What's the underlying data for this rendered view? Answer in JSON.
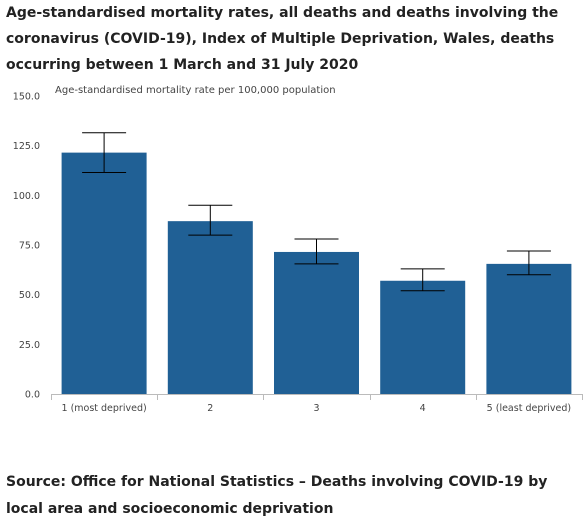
{
  "title": "Age-standardised mortality rates, all deaths and deaths involving the coronavirus (COVID-19), Index of Multiple Deprivation, Wales, deaths occurring between 1 March and 31 July 2020",
  "source": "Source: Office for National Statistics – Deaths involving COVID-19 by local area and socioeconomic deprivation",
  "colors": {
    "bar": "#206095",
    "error_bar": "#000000",
    "axis": "#bbbbbb"
  },
  "chart_data": {
    "type": "bar",
    "title": "Age-standardised mortality rates, all deaths and deaths involving the coronavirus (COVID-19), Index of Multiple Deprivation, Wales, deaths occurring between 1 March and 31 July 2020",
    "xlabel": "",
    "ylabel": "Age-standardised mortality rate per 100,000 population",
    "ylim": [
      0,
      150
    ],
    "yticks": [
      0,
      25,
      50,
      75,
      100,
      125,
      150
    ],
    "ytick_labels": [
      "0.0",
      "25.0",
      "50.0",
      "75.0",
      "100.0",
      "125.0",
      "150.0"
    ],
    "categories": [
      "1 (most deprived)",
      "2",
      "3",
      "4",
      "5 (least deprived)"
    ],
    "values": [
      121.5,
      87.0,
      71.5,
      57.0,
      65.5
    ],
    "error_bars": {
      "lower": [
        111.5,
        80.0,
        65.5,
        52.0,
        60.0
      ],
      "upper": [
        131.5,
        95.0,
        78.0,
        63.0,
        72.0
      ]
    },
    "grid": false,
    "legend": "none"
  }
}
